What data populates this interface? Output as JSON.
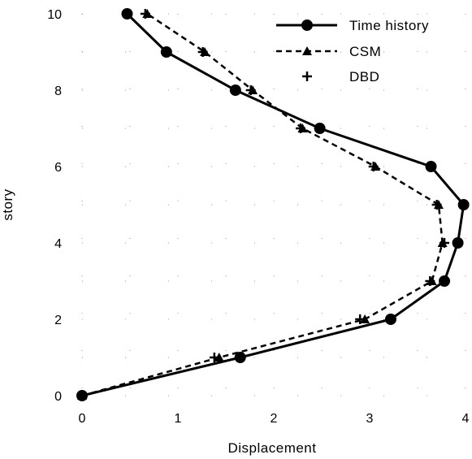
{
  "chart_data": {
    "type": "line",
    "xlabel": "Displacement",
    "ylabel": "story",
    "xlim": [
      0,
      4
    ],
    "ylim": [
      0,
      10
    ],
    "xticks": [
      "0",
      "1",
      "2",
      "3",
      "4"
    ],
    "yticks": [
      "0",
      "2",
      "4",
      "6",
      "8",
      "10"
    ],
    "minor_grid": "dotted",
    "legend_position": "top-right",
    "series": [
      {
        "name": "Time history",
        "marker": "circle",
        "line": "solid",
        "color": "#000000",
        "points": [
          [
            0,
            0
          ],
          [
            1.65,
            1
          ],
          [
            3.22,
            2
          ],
          [
            3.78,
            3
          ],
          [
            3.92,
            4
          ],
          [
            3.98,
            5
          ],
          [
            3.64,
            6
          ],
          [
            2.48,
            7
          ],
          [
            1.6,
            8
          ],
          [
            0.88,
            9
          ],
          [
            0.47,
            10
          ]
        ]
      },
      {
        "name": "CSM",
        "marker": "triangle",
        "line": "dashed",
        "color": "#000000",
        "points": [
          [
            0,
            0
          ],
          [
            1.43,
            1
          ],
          [
            2.95,
            2
          ],
          [
            3.65,
            3
          ],
          [
            3.76,
            4
          ],
          [
            3.72,
            5
          ],
          [
            3.06,
            6
          ],
          [
            2.3,
            7
          ],
          [
            1.78,
            8
          ],
          [
            1.28,
            9
          ],
          [
            0.68,
            10
          ]
        ]
      },
      {
        "name": "DBD",
        "marker": "plus",
        "line": "none",
        "color": "#000000",
        "points": [
          [
            0,
            0
          ],
          [
            1.38,
            1
          ],
          [
            2.9,
            2
          ],
          [
            3.63,
            3
          ],
          [
            3.78,
            4
          ],
          [
            3.7,
            5
          ],
          [
            3.04,
            6
          ],
          [
            2.28,
            7
          ],
          [
            1.76,
            8
          ],
          [
            1.26,
            9
          ],
          [
            0.66,
            10
          ]
        ]
      }
    ]
  }
}
